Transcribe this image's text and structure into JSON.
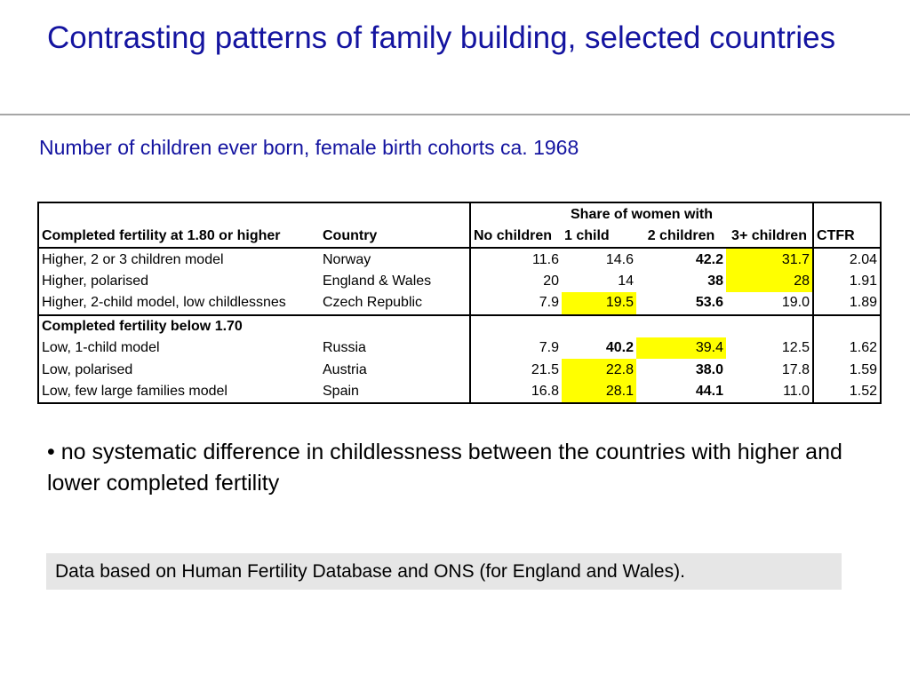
{
  "title": "Contrasting patterns of family building, selected countries",
  "subtitle": "Number of children ever born, female birth cohorts ca. 1968",
  "table": {
    "group_header": "Share of women with",
    "headers": {
      "category": "Completed fertility at 1.80 or higher",
      "country": "Country",
      "no_children": "No children",
      "one_child": "1 child",
      "two_children": "2 children",
      "three_plus": "3+ children",
      "ctfr": "CTFR"
    },
    "rows_high": [
      {
        "category": "Higher, 2 or 3 children model",
        "country": "Norway",
        "no_children": "11.6",
        "one_child": "14.6",
        "two_children": "42.2",
        "three_plus": "31.7",
        "ctfr": "2.04"
      },
      {
        "category": "Higher, polarised",
        "country": "England & Wales",
        "no_children": "20",
        "one_child": "14",
        "two_children": "38",
        "three_plus": "28",
        "ctfr": "1.91"
      },
      {
        "category": "Higher, 2-child model, low childlessnes",
        "country": "Czech Republic",
        "no_children": "7.9",
        "one_child": "19.5",
        "two_children": "53.6",
        "three_plus": "19.0",
        "ctfr": "1.89"
      }
    ],
    "section_low_label": "Completed fertility below 1.70",
    "rows_low": [
      {
        "category": "Low, 1-child model",
        "country": "Russia",
        "no_children": "7.9",
        "one_child": "40.2",
        "two_children": "39.4",
        "three_plus": "12.5",
        "ctfr": "1.62"
      },
      {
        "category": "Low, polarised",
        "country": "Austria",
        "no_children": "21.5",
        "one_child": "22.8",
        "two_children": "38.0",
        "three_plus": "17.8",
        "ctfr": "1.59"
      },
      {
        "category": "Low, few large families model",
        "country": "Spain",
        "no_children": "16.8",
        "one_child": "28.1",
        "two_children": "44.1",
        "three_plus": "11.0",
        "ctfr": "1.52"
      }
    ],
    "highlight_color": "#ffff00"
  },
  "bullet": "• no systematic difference in childlessness between the countries with higher and lower completed fertility",
  "source_note": "Data based on Human Fertility Database and ONS (for England and Wales).",
  "colors": {
    "title": "#1414a0",
    "source_box": "#e6e6e6"
  }
}
